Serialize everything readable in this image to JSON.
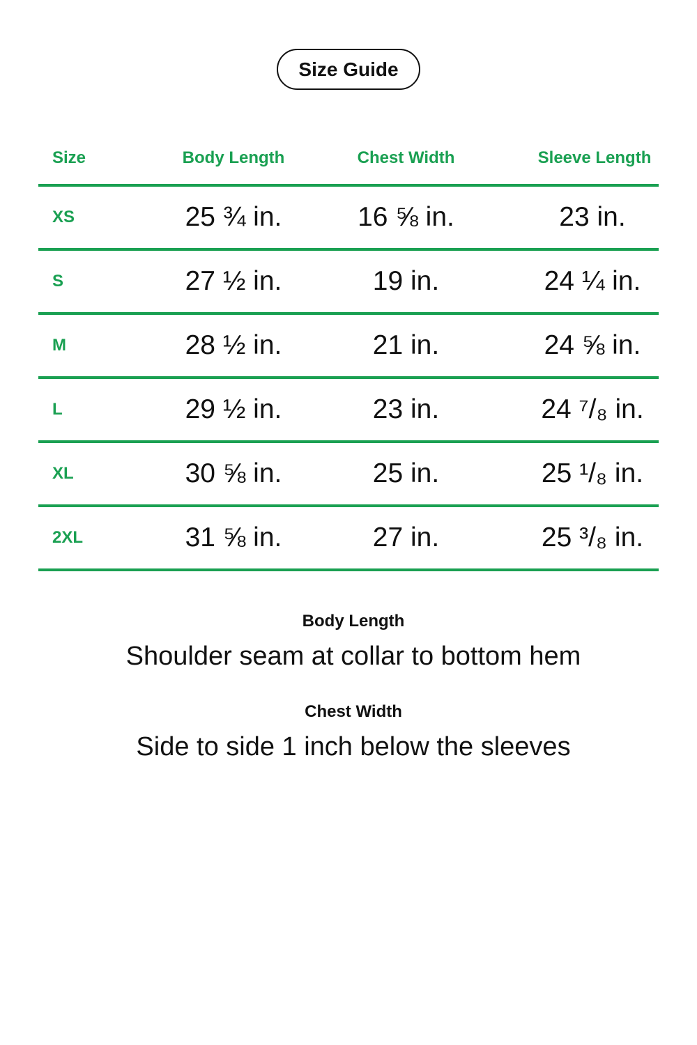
{
  "title": "Size Guide",
  "colors": {
    "accent": "#1aa052",
    "text": "#111111",
    "background": "#ffffff"
  },
  "table": {
    "headers": [
      "Size",
      "Body Length",
      "Chest Width",
      "Sleeve Length"
    ],
    "rows": [
      {
        "size": "XS",
        "body": "25 ¾ in.",
        "chest": "16 ⅝ in.",
        "sleeve": "23 in."
      },
      {
        "size": "S",
        "body": "27 ½ in.",
        "chest": "19 in.",
        "sleeve": "24 ¼ in."
      },
      {
        "size": "M",
        "body": "28 ½ in.",
        "chest": "21 in.",
        "sleeve": "24 ⅝ in."
      },
      {
        "size": "L",
        "body": "29 ½ in.",
        "chest": "23 in.",
        "sleeve": "24 ⁷/₈ in."
      },
      {
        "size": "XL",
        "body": "30 ⅝ in.",
        "chest": "25 in.",
        "sleeve": "25 ¹/₈ in."
      },
      {
        "size": "2XL",
        "body": "31 ⅝ in.",
        "chest": "27 in.",
        "sleeve": "25 ³/₈ in."
      }
    ]
  },
  "notes": [
    {
      "label": "Body Length",
      "text": "Shoulder seam at collar to bottom hem"
    },
    {
      "label": "Chest Width",
      "text": "Side to side 1 inch below the sleeves"
    }
  ]
}
